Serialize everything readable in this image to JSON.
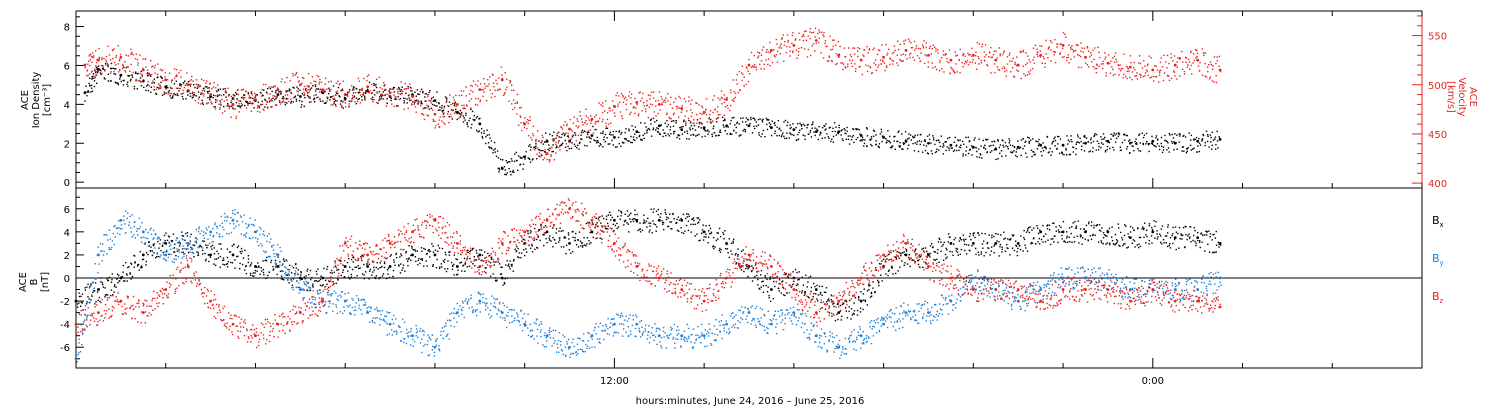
{
  "chart_data": [
    {
      "type": "scatter",
      "panel": "top",
      "ylabel_lines": [
        "ACE",
        "Ion Density",
        "[cm⁻³]"
      ],
      "ylabel_right_lines": [
        "ACE",
        "Velocity",
        "[km/s]"
      ],
      "ylim": [
        -0.3,
        8.8
      ],
      "y_ticks": [
        "0",
        "2",
        "4",
        "6",
        "8"
      ],
      "y_tick_values": [
        0,
        2,
        4,
        6,
        8
      ],
      "ylim_right": [
        395,
        575
      ],
      "y_ticks_right": [
        "400",
        "450",
        "500",
        "550"
      ],
      "y_tick_values_right": [
        400,
        450,
        500,
        550
      ],
      "x_range_hours": [
        0,
        30
      ],
      "grid": false,
      "series": [
        {
          "color": "#000000",
          "axis": "left",
          "points": [
            [
              0.2,
              4.6
            ],
            [
              0.5,
              5.8
            ],
            [
              1.0,
              5.5
            ],
            [
              1.5,
              5.2
            ],
            [
              2.0,
              4.9
            ],
            [
              2.5,
              4.7
            ],
            [
              3.0,
              4.4
            ],
            [
              3.5,
              4.3
            ],
            [
              4.0,
              4.2
            ],
            [
              4.5,
              4.5
            ],
            [
              5.0,
              4.4
            ],
            [
              5.5,
              4.6
            ],
            [
              6.0,
              4.3
            ],
            [
              6.5,
              4.7
            ],
            [
              7.0,
              4.4
            ],
            [
              7.5,
              4.5
            ],
            [
              8.0,
              4.2
            ],
            [
              8.5,
              3.6
            ],
            [
              9.0,
              3.0
            ],
            [
              9.5,
              0.7
            ],
            [
              10.0,
              1.3
            ],
            [
              10.5,
              2.1
            ],
            [
              11.0,
              2.1
            ],
            [
              11.5,
              2.4
            ],
            [
              12.0,
              2.3
            ],
            [
              12.5,
              2.6
            ],
            [
              13.0,
              2.9
            ],
            [
              13.5,
              2.7
            ],
            [
              14.0,
              2.8
            ],
            [
              14.5,
              2.9
            ],
            [
              15.0,
              2.9
            ],
            [
              15.5,
              2.8
            ],
            [
              16.0,
              2.7
            ],
            [
              16.5,
              2.6
            ],
            [
              17.0,
              2.6
            ],
            [
              17.5,
              2.4
            ],
            [
              18.0,
              2.3
            ],
            [
              18.5,
              2.1
            ],
            [
              19.0,
              2.0
            ],
            [
              19.5,
              1.9
            ],
            [
              20.0,
              1.8
            ],
            [
              20.5,
              1.7
            ],
            [
              21.0,
              1.8
            ],
            [
              21.5,
              1.9
            ],
            [
              22.0,
              1.9
            ],
            [
              22.5,
              2.0
            ],
            [
              23.0,
              2.1
            ],
            [
              23.5,
              2.0
            ],
            [
              24.0,
              2.1
            ],
            [
              24.5,
              2.0
            ],
            [
              25.0,
              2.1
            ],
            [
              25.5,
              2.2
            ]
          ]
        },
        {
          "color": "#e8231f",
          "axis": "right",
          "points": [
            [
              0.2,
              520
            ],
            [
              0.5,
              525
            ],
            [
              1.0,
              528
            ],
            [
              1.5,
              515
            ],
            [
              2.0,
              505
            ],
            [
              2.5,
              500
            ],
            [
              3.0,
              490
            ],
            [
              3.5,
              480
            ],
            [
              4.0,
              485
            ],
            [
              4.5,
              495
            ],
            [
              5.0,
              500
            ],
            [
              5.5,
              495
            ],
            [
              6.0,
              490
            ],
            [
              6.5,
              498
            ],
            [
              7.0,
              492
            ],
            [
              7.5,
              488
            ],
            [
              8.0,
              470
            ],
            [
              8.5,
              480
            ],
            [
              9.0,
              495
            ],
            [
              9.5,
              505
            ],
            [
              10.0,
              460
            ],
            [
              10.5,
              430
            ],
            [
              11.0,
              455
            ],
            [
              11.5,
              465
            ],
            [
              12.0,
              478
            ],
            [
              12.5,
              482
            ],
            [
              13.0,
              480
            ],
            [
              13.5,
              476
            ],
            [
              14.0,
              472
            ],
            [
              14.5,
              485
            ],
            [
              15.0,
              520
            ],
            [
              15.5,
              535
            ],
            [
              16.0,
              540
            ],
            [
              16.5,
              545
            ],
            [
              17.0,
              530
            ],
            [
              17.5,
              525
            ],
            [
              18.0,
              528
            ],
            [
              18.5,
              535
            ],
            [
              19.0,
              530
            ],
            [
              19.5,
              525
            ],
            [
              20.0,
              530
            ],
            [
              20.5,
              525
            ],
            [
              21.0,
              520
            ],
            [
              21.5,
              530
            ],
            [
              22.0,
              540
            ],
            [
              22.5,
              528
            ],
            [
              23.0,
              522
            ],
            [
              23.5,
              518
            ],
            [
              24.0,
              515
            ],
            [
              24.5,
              520
            ],
            [
              25.0,
              525
            ],
            [
              25.5,
              515
            ]
          ]
        }
      ]
    },
    {
      "type": "scatter",
      "panel": "bottom",
      "ylabel_lines": [
        "ACE",
        "B",
        "[nT]"
      ],
      "ylim": [
        -7.8,
        7.8
      ],
      "y_ticks": [
        "-6",
        "-4",
        "-2",
        "0",
        "2",
        "4",
        "6"
      ],
      "y_tick_values": [
        -6,
        -4,
        -2,
        0,
        2,
        4,
        6
      ],
      "x_ticks": [
        "12:00",
        "0:00"
      ],
      "x_tick_values": [
        12,
        24
      ],
      "x_range_hours": [
        0,
        30
      ],
      "xlabel": "hours:minutes, June 24, 2016 – June 25, 2016",
      "grid": false,
      "zero_line": true,
      "legend_placement": "right",
      "series": [
        {
          "name": "Bx",
          "name_base": "B",
          "name_sub": "x",
          "color": "#000000",
          "points": [
            [
              0.0,
              -2
            ],
            [
              0.5,
              -1
            ],
            [
              1.0,
              0
            ],
            [
              1.5,
              2
            ],
            [
              2.0,
              3
            ],
            [
              2.5,
              3
            ],
            [
              3.0,
              2
            ],
            [
              3.5,
              2
            ],
            [
              4.0,
              1
            ],
            [
              4.5,
              1
            ],
            [
              5.0,
              0
            ],
            [
              5.5,
              0
            ],
            [
              6.0,
              1
            ],
            [
              6.5,
              1
            ],
            [
              7.0,
              1
            ],
            [
              7.5,
              2
            ],
            [
              8.0,
              2
            ],
            [
              8.5,
              1
            ],
            [
              9.0,
              2
            ],
            [
              9.5,
              0
            ],
            [
              10.0,
              3
            ],
            [
              10.5,
              4
            ],
            [
              11.0,
              3
            ],
            [
              11.5,
              4
            ],
            [
              12.0,
              5
            ],
            [
              12.5,
              5
            ],
            [
              13.0,
              5
            ],
            [
              13.5,
              5
            ],
            [
              14.0,
              4
            ],
            [
              14.5,
              3
            ],
            [
              15.0,
              1
            ],
            [
              15.5,
              -1
            ],
            [
              16.0,
              0
            ],
            [
              16.5,
              -1
            ],
            [
              17.0,
              -3
            ],
            [
              17.5,
              -2
            ],
            [
              18.0,
              1
            ],
            [
              18.5,
              2
            ],
            [
              19.0,
              2
            ],
            [
              19.5,
              3
            ],
            [
              20.0,
              3
            ],
            [
              20.5,
              3
            ],
            [
              21.0,
              3
            ],
            [
              21.5,
              4
            ],
            [
              22.0,
              4
            ],
            [
              22.5,
              4
            ],
            [
              23.0,
              4
            ],
            [
              23.5,
              3.5
            ],
            [
              24.0,
              4
            ],
            [
              24.5,
              3.5
            ],
            [
              25.0,
              3.5
            ],
            [
              25.5,
              3
            ]
          ]
        },
        {
          "name": "By",
          "name_base": "B",
          "name_sub": "y",
          "color": "#1f7fd6",
          "points": [
            [
              0.0,
              -7
            ],
            [
              0.5,
              2
            ],
            [
              1.0,
              5
            ],
            [
              1.5,
              4
            ],
            [
              2.0,
              2
            ],
            [
              2.5,
              3
            ],
            [
              3.0,
              4
            ],
            [
              3.5,
              5
            ],
            [
              4.0,
              4
            ],
            [
              4.5,
              2
            ],
            [
              5.0,
              -1
            ],
            [
              5.5,
              -2
            ],
            [
              6.0,
              -2
            ],
            [
              6.5,
              -3
            ],
            [
              7.0,
              -4
            ],
            [
              7.5,
              -5
            ],
            [
              8.0,
              -6
            ],
            [
              8.5,
              -3
            ],
            [
              9.0,
              -2
            ],
            [
              9.5,
              -3
            ],
            [
              10.0,
              -4
            ],
            [
              10.5,
              -5
            ],
            [
              11.0,
              -6
            ],
            [
              11.5,
              -5
            ],
            [
              12.0,
              -4
            ],
            [
              12.5,
              -4
            ],
            [
              13.0,
              -5
            ],
            [
              13.5,
              -5
            ],
            [
              14.0,
              -5
            ],
            [
              14.5,
              -4
            ],
            [
              15.0,
              -3
            ],
            [
              15.5,
              -4
            ],
            [
              16.0,
              -3
            ],
            [
              16.5,
              -5
            ],
            [
              17.0,
              -6
            ],
            [
              17.5,
              -5
            ],
            [
              18.0,
              -4
            ],
            [
              18.5,
              -3
            ],
            [
              19.0,
              -3
            ],
            [
              19.5,
              -2
            ],
            [
              20.0,
              0
            ],
            [
              20.5,
              -1
            ],
            [
              21.0,
              -2
            ],
            [
              21.5,
              -1
            ],
            [
              22.0,
              0
            ],
            [
              22.5,
              0
            ],
            [
              23.0,
              0
            ],
            [
              23.5,
              -1
            ],
            [
              24.0,
              -1
            ],
            [
              24.5,
              -1
            ],
            [
              25.0,
              -1
            ],
            [
              25.5,
              0
            ]
          ]
        },
        {
          "name": "Bz",
          "name_base": "B",
          "name_sub": "z",
          "color": "#e8231f",
          "points": [
            [
              0.0,
              -4
            ],
            [
              0.5,
              -3
            ],
            [
              1.0,
              -2
            ],
            [
              1.5,
              -3
            ],
            [
              2.0,
              -1
            ],
            [
              2.5,
              1
            ],
            [
              3.0,
              -2
            ],
            [
              3.5,
              -4
            ],
            [
              4.0,
              -5
            ],
            [
              4.5,
              -4
            ],
            [
              5.0,
              -3
            ],
            [
              5.5,
              -2
            ],
            [
              6.0,
              3
            ],
            [
              6.5,
              2
            ],
            [
              7.0,
              3
            ],
            [
              7.5,
              4
            ],
            [
              8.0,
              5
            ],
            [
              8.5,
              3
            ],
            [
              9.0,
              1
            ],
            [
              9.5,
              3
            ],
            [
              10.0,
              4
            ],
            [
              10.5,
              5
            ],
            [
              11.0,
              6
            ],
            [
              11.5,
              5
            ],
            [
              12.0,
              3
            ],
            [
              12.5,
              1
            ],
            [
              13.0,
              0
            ],
            [
              13.5,
              -1
            ],
            [
              14.0,
              -2
            ],
            [
              14.5,
              0
            ],
            [
              15.0,
              2
            ],
            [
              15.5,
              1
            ],
            [
              16.0,
              -1
            ],
            [
              16.5,
              -3
            ],
            [
              17.0,
              -2
            ],
            [
              17.5,
              0
            ],
            [
              18.0,
              2
            ],
            [
              18.5,
              3
            ],
            [
              19.0,
              1
            ],
            [
              19.5,
              0
            ],
            [
              20.0,
              -1
            ],
            [
              20.5,
              -1
            ],
            [
              21.0,
              -1
            ],
            [
              21.5,
              -2
            ],
            [
              22.0,
              -1
            ],
            [
              22.5,
              -1
            ],
            [
              23.0,
              -1
            ],
            [
              23.5,
              -2
            ],
            [
              24.0,
              -1
            ],
            [
              24.5,
              -2
            ],
            [
              25.0,
              -2
            ],
            [
              25.5,
              -2.5
            ]
          ]
        }
      ]
    }
  ]
}
